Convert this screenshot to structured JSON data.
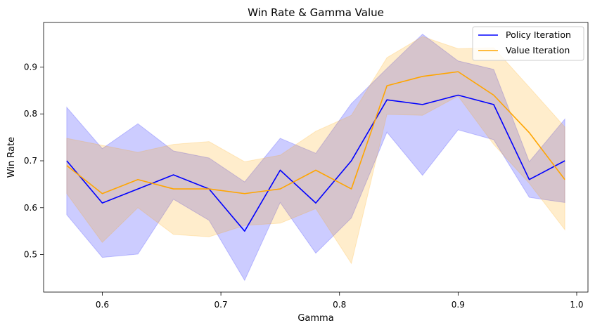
{
  "chart_data": {
    "type": "line",
    "title": "Win Rate & Gamma Value",
    "xlabel": "Gamma",
    "ylabel": "Win Rate",
    "xlim": [
      0.5505,
      1.0095
    ],
    "ylim": [
      0.42,
      0.995
    ],
    "xticks": [
      0.6,
      0.7,
      0.8,
      0.9,
      1.0
    ],
    "xtick_labels": [
      "0.6",
      "0.7",
      "0.8",
      "0.9",
      "1.0"
    ],
    "yticks": [
      0.5,
      0.6,
      0.7,
      0.8,
      0.9
    ],
    "ytick_labels": [
      "0.5",
      "0.6",
      "0.7",
      "0.8",
      "0.9"
    ],
    "grid": false,
    "legend_position": "top-right",
    "x": [
      0.57,
      0.6,
      0.63,
      0.66,
      0.69,
      0.72,
      0.75,
      0.78,
      0.81,
      0.84,
      0.87,
      0.9,
      0.93,
      0.96,
      0.99
    ],
    "series": [
      {
        "name": "Policy Iteration",
        "color": "#0000ff",
        "band_color": "#0000ff",
        "values": [
          0.7,
          0.61,
          0.64,
          0.67,
          0.64,
          0.55,
          0.68,
          0.61,
          0.7,
          0.83,
          0.82,
          0.84,
          0.82,
          0.66,
          0.7
        ],
        "lower": [
          0.585,
          0.494,
          0.501,
          0.618,
          0.573,
          0.445,
          0.611,
          0.503,
          0.578,
          0.761,
          0.669,
          0.766,
          0.745,
          0.622,
          0.611
        ],
        "upper": [
          0.814,
          0.726,
          0.779,
          0.721,
          0.706,
          0.655,
          0.748,
          0.716,
          0.822,
          0.897,
          0.97,
          0.913,
          0.895,
          0.698,
          0.789
        ]
      },
      {
        "name": "Value Iteration",
        "color": "#ffa500",
        "band_color": "#ffa500",
        "values": [
          0.69,
          0.63,
          0.66,
          0.64,
          0.64,
          0.63,
          0.64,
          0.68,
          0.64,
          0.86,
          0.88,
          0.89,
          0.84,
          0.76,
          0.66
        ],
        "lower": [
          0.63,
          0.526,
          0.6,
          0.543,
          0.538,
          0.562,
          0.567,
          0.598,
          0.481,
          0.799,
          0.797,
          0.838,
          0.735,
          0.652,
          0.553
        ],
        "upper": [
          0.748,
          0.733,
          0.718,
          0.735,
          0.741,
          0.698,
          0.712,
          0.763,
          0.797,
          0.92,
          0.965,
          0.939,
          0.941,
          0.857,
          0.772
        ]
      }
    ]
  }
}
